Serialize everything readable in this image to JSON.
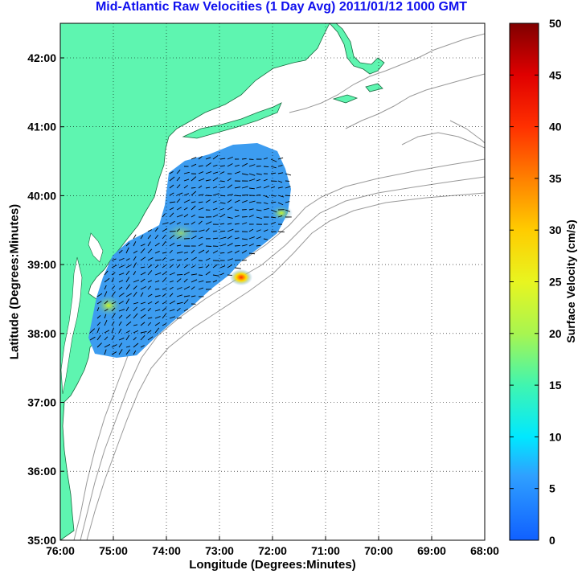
{
  "title": "Mid-Atlantic Raw Velocities (1 Day Avg) 2011/01/12 1000 GMT",
  "xlabel": "Longitude (Degrees:Minutes)",
  "ylabel": "Latitude (Degrees:Minutes)",
  "colorbar": {
    "label": "Surface Velocity (cm/s)",
    "ticks": [
      "0",
      "5",
      "10",
      "15",
      "20",
      "25",
      "30",
      "35",
      "40",
      "45",
      "50"
    ],
    "range": [
      0,
      50
    ],
    "colormap": "jet"
  },
  "map": {
    "x_ticks": [
      "76:00",
      "75:00",
      "74:00",
      "73:00",
      "72:00",
      "71:00",
      "70:00",
      "69:00",
      "68:00"
    ],
    "y_ticks": [
      "42:00",
      "41:00",
      "40:00",
      "39:00",
      "38:00",
      "37:00",
      "36:00",
      "35:00"
    ],
    "lon_range": [
      -76,
      -68
    ],
    "lat_range": [
      35,
      42.5
    ],
    "grid": "dotted",
    "land_color": "#5ef5b0",
    "ocean_color": "#ffffff",
    "bathymetry_color": "#999999",
    "velocity_field_color": "#3c9cf0",
    "vector_color": "#000000"
  }
}
